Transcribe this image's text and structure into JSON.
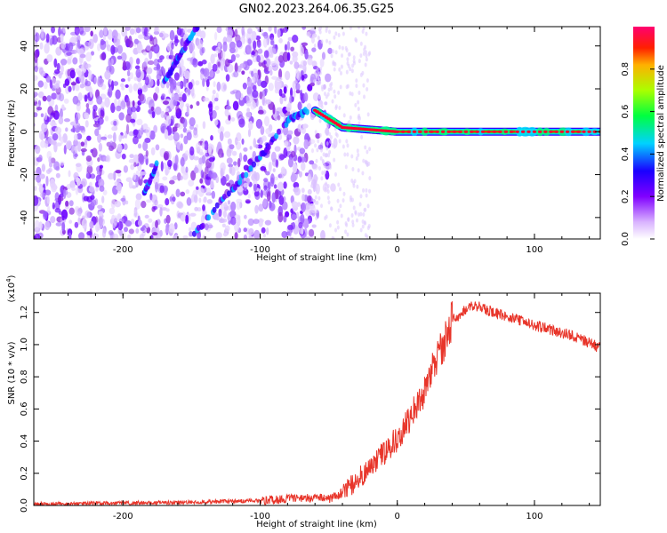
{
  "figure_title": "GN02.2023.264.06.35.G25",
  "colors": {
    "snr_line": "#e8352a",
    "track_color": "#5a00e6",
    "colormap": [
      "#ffffff",
      "#c08cff",
      "#8a2be2",
      "#3300ff",
      "#00c8ff",
      "#00ff66",
      "#c8ff00",
      "#ff8800",
      "#ff0000",
      "#ff0066"
    ]
  },
  "chart_data": [
    {
      "type": "heatmap",
      "title": "",
      "xlabel": "Height of straight line (km)",
      "ylabel": "Frequency (Hz)",
      "xlim": [
        -265,
        148
      ],
      "ylim": [
        -50,
        49
      ],
      "x_ticks": [
        "-200",
        "-100",
        "0",
        "100"
      ],
      "x_tick_values": [
        -200,
        -100,
        0,
        100
      ],
      "y_ticks": [
        "-40",
        "-20",
        "0",
        "20",
        "40"
      ],
      "y_tick_values": [
        -40,
        -20,
        0,
        20,
        40
      ],
      "grid": false,
      "colorbar": {
        "label": "Normalized spectral amplitude",
        "ticks": [
          "0.0",
          "0.2",
          "0.4",
          "0.6",
          "0.8"
        ],
        "tick_values": [
          0.0,
          0.2,
          0.4,
          0.6,
          0.8
        ],
        "range": [
          0,
          1
        ]
      },
      "tracks": [
        {
          "x": [
            -60,
            -40,
            -20,
            0,
            50,
            100,
            148
          ],
          "y": [
            10,
            2,
            1,
            0,
            0,
            0,
            0
          ]
        },
        {
          "x": [
            -148,
            -125,
            -100,
            -80,
            -65
          ],
          "y": [
            -48,
            -30,
            -12,
            5,
            10
          ]
        },
        {
          "x": [
            -170,
            -160,
            -145
          ],
          "y": [
            23,
            34,
            50
          ]
        },
        {
          "x": [
            -185,
            -175
          ],
          "y": [
            -30,
            -15
          ]
        }
      ]
    },
    {
      "type": "line",
      "title": "",
      "xlabel": "Height of straight line (km)",
      "ylabel": "SNR (10 * v/v)",
      "y_multiplier_label": "(x10",
      "y_multiplier_exponent": "4",
      "y_multiplier_close": ")",
      "xlim": [
        -265,
        148
      ],
      "ylim": [
        0,
        1.32
      ],
      "x_ticks": [
        "-200",
        "-100",
        "0",
        "100"
      ],
      "x_tick_values": [
        -200,
        -100,
        0,
        100
      ],
      "y_ticks": [
        "0.0",
        "0.2",
        "0.4",
        "0.6",
        "0.8",
        "1.0",
        "1.2"
      ],
      "y_tick_values": [
        0.0,
        0.2,
        0.4,
        0.6,
        0.8,
        1.0,
        1.2
      ],
      "grid": false,
      "series": [
        {
          "x": [
            -265,
            -240,
            -200,
            -150,
            -100,
            -80,
            -60,
            -50,
            -40,
            -30,
            -20,
            -10,
            0,
            10,
            20,
            30,
            35,
            40,
            50,
            55,
            70,
            100,
            130,
            148
          ],
          "values": [
            0.01,
            0.01,
            0.015,
            0.02,
            0.03,
            0.04,
            0.05,
            0.04,
            0.08,
            0.15,
            0.24,
            0.32,
            0.42,
            0.55,
            0.72,
            0.95,
            1.02,
            1.15,
            1.22,
            1.25,
            1.2,
            1.12,
            1.05,
            0.98
          ]
        }
      ]
    }
  ]
}
